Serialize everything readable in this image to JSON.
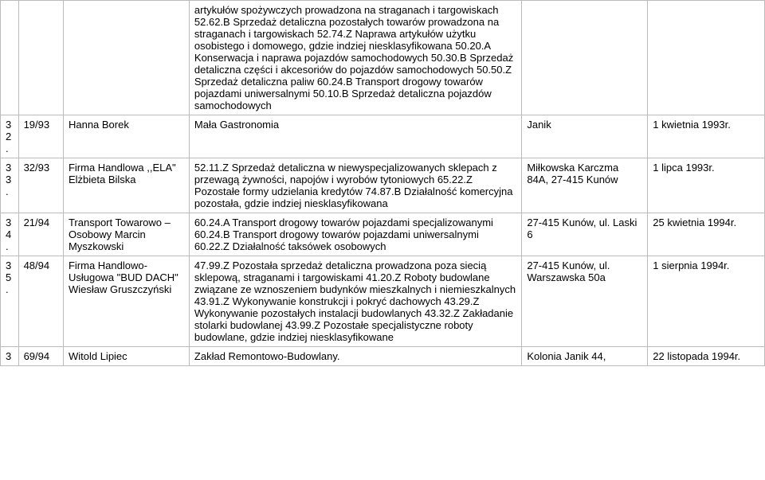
{
  "rows": [
    {
      "idx": "",
      "num": "",
      "name": "",
      "desc": "artykułów spożywczych prowadzona na straganach i targowiskach 52.62.B Sprzedaż detaliczna pozostałych towarów prowadzona na straganach i targowiskach 52.74.Z Naprawa artykułów użytku osobistego i domowego, gdzie indziej niesklasyfikowana 50.20.A Konserwacja i naprawa pojazdów samochodowych 50.30.B Sprzedaż detaliczna części i akcesoriów do pojazdów samochodowych 50.50.Z Sprzedaż detaliczna paliw 60.24.B Transport drogowy towarów pojazdami uniwersalnymi 50.10.B Sprzedaż detaliczna pojazdów samochodowych",
      "addr": "",
      "date": ""
    },
    {
      "idx": "3 2.",
      "num": "19/93",
      "name": "Hanna Borek",
      "desc": "Mała Gastronomia",
      "addr": "Janik",
      "date": "1 kwietnia 1993r."
    },
    {
      "idx": "3 3.",
      "num": "32/93",
      "name": "Firma Handlowa ,,ELA\" Elżbieta Bilska",
      "desc": "52.11.Z Sprzedaż detaliczna w niewyspecjalizowanych sklepach z przewagą żywności, napojów i wyrobów tytoniowych 65.22.Z Pozostałe formy udzielania kredytów 74.87.B Działalność komercyjna pozostała, gdzie indziej niesklasyfikowana",
      "addr": "Miłkowska Karczma 84A, 27-415 Kunów",
      "date": "1 lipca 1993r."
    },
    {
      "idx": "3 4.",
      "num": "21/94",
      "name": "Transport Towarowo – Osobowy Marcin Myszkowski",
      "desc": "60.24.A Transport drogowy towarów pojazdami specjalizowanymi 60.24.B Transport drogowy towarów pojazdami uniwersalnymi 60.22.Z Działalność taksówek osobowych",
      "addr": "27-415 Kunów, ul. Laski 6",
      "date": "25 kwietnia 1994r."
    },
    {
      "idx": "3 5.",
      "num": "48/94",
      "name": "Firma Handlowo-Usługowa \"BUD DACH\" Wiesław Gruszczyński",
      "desc": "47.99.Z Pozostała sprzedaż detaliczna prowadzona poza siecią sklepową, straganami i targowiskami 41.20.Z Roboty budowlane związane ze wznoszeniem budynków mieszkalnych i niemieszkalnych 43.91.Z Wykonywanie konstrukcji i pokryć dachowych 43.29.Z Wykonywanie pozostałych instalacji budowlanych 43.32.Z Zakładanie stolarki budowlanej 43.99.Z Pozostałe specjalistyczne roboty budowlane, gdzie indziej niesklasyfikowane",
      "addr": "27-415 Kunów, ul. Warszawska 50a",
      "date": "1 sierpnia 1994r."
    },
    {
      "idx": "3",
      "num": "69/94",
      "name": "Witold Lipiec",
      "desc": "Zakład Remontowo-Budowlany.",
      "addr": "Kolonia Janik 44,",
      "date": "22 listopada 1994r."
    }
  ]
}
